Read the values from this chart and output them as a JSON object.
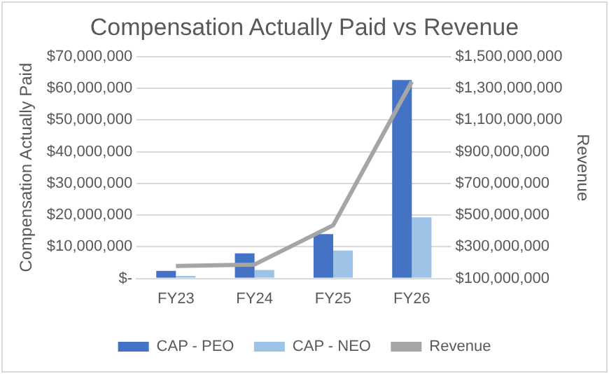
{
  "chart_data": {
    "type": "bar",
    "title": "Compensation Actually Paid vs Revenue",
    "ylabel": "Compensation Actually Paid",
    "y2label": "Revenue",
    "categories": [
      "FY23",
      "FY24",
      "FY25",
      "FY26"
    ],
    "series": [
      {
        "name": "CAP - PEO",
        "color": "#4472c4",
        "values": [
          2400000,
          7900000,
          14000000,
          62600000
        ]
      },
      {
        "name": "CAP - NEO",
        "color": "#9dc3e6",
        "values": [
          800000,
          2700000,
          8800000,
          19300000
        ]
      },
      {
        "name": "Revenue",
        "type": "line",
        "axis": "y2",
        "color": "#a5a5a5",
        "values": [
          179000000,
          188000000,
          436000000,
          1342000000
        ]
      }
    ],
    "ylim": [
      0,
      70000000
    ],
    "yticks": [
      {
        "value": 0,
        "label": "$-"
      },
      {
        "value": 10000000,
        "label": "$10,000,000"
      },
      {
        "value": 20000000,
        "label": "$20,000,000"
      },
      {
        "value": 30000000,
        "label": "$30,000,000"
      },
      {
        "value": 40000000,
        "label": "$40,000,000"
      },
      {
        "value": 50000000,
        "label": "$50,000,000"
      },
      {
        "value": 60000000,
        "label": "$60,000,000"
      },
      {
        "value": 70000000,
        "label": "$70,000,000"
      }
    ],
    "y2lim": [
      100000000,
      1500000000
    ],
    "y2ticks": [
      {
        "value": 100000000,
        "label": "$100,000,000"
      },
      {
        "value": 300000000,
        "label": "$300,000,000"
      },
      {
        "value": 500000000,
        "label": "$500,000,000"
      },
      {
        "value": 700000000,
        "label": "$700,000,000"
      },
      {
        "value": 900000000,
        "label": "$900,000,000"
      },
      {
        "value": 1100000000,
        "label": "$1,100,000,000"
      },
      {
        "value": 1300000000,
        "label": "$1,300,000,000"
      },
      {
        "value": 1500000000,
        "label": "$1,500,000,000"
      }
    ],
    "grid": "y",
    "legend": "bottom",
    "marker": "none"
  }
}
